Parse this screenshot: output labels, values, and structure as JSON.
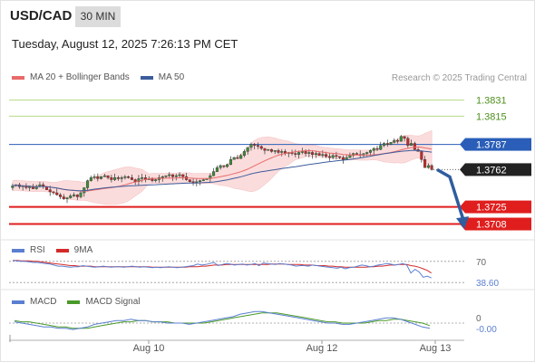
{
  "header": {
    "pair": "USD/CAD",
    "timeframe": "30 MIN",
    "datetime": "Tuesday, August 12, 2025 7:26:13 PM CET",
    "credit": "Research © 2025 Trading Central"
  },
  "colors": {
    "ma20": "#e86a6a",
    "bollinger_fill": "#fbdcdc",
    "ma50": "#3d5c9c",
    "target_line": "#b5d98a",
    "pivot_line": "#2a5eb8",
    "support_line": "#e01e1e",
    "candle_up": "#3a8f3a",
    "candle_down": "#c62828",
    "arrow": "#2f5d9e",
    "rsi": "#5b7fd0",
    "rsi_9ma": "#d42a2a",
    "macd": "#5b7fd0",
    "macd_signal": "#4a9a2a"
  },
  "chart_data": [
    {
      "type": "candlestick",
      "legend": [
        "MA 20 + Bollinger Bands",
        "MA 50"
      ],
      "x_ticks": [
        "Aug 10",
        "Aug 12",
        "Aug 13"
      ],
      "ylim": [
        1.3695,
        1.3845
      ],
      "levels": [
        {
          "label": "1.3831",
          "value": 1.3831,
          "kind": "target"
        },
        {
          "label": "1.3815",
          "value": 1.3815,
          "kind": "target"
        },
        {
          "label": "1.3787",
          "value": 1.3787,
          "kind": "pivot"
        },
        {
          "label": "1.3762",
          "value": 1.3762,
          "kind": "last"
        },
        {
          "label": "1.3725",
          "value": 1.3725,
          "kind": "support"
        },
        {
          "label": "1.3708",
          "value": 1.3708,
          "kind": "support"
        }
      ],
      "close": [
        1.3746,
        1.3747,
        1.3745,
        1.3746,
        1.3744,
        1.3745,
        1.3743,
        1.3745,
        1.3747,
        1.3745,
        1.3742,
        1.374,
        1.3739,
        1.3737,
        1.3735,
        1.3733,
        1.3734,
        1.3736,
        1.3737,
        1.3735,
        1.3739,
        1.3744,
        1.3751,
        1.3754,
        1.3755,
        1.3753,
        1.3755,
        1.3756,
        1.3754,
        1.3752,
        1.3754,
        1.3753,
        1.3754,
        1.3755,
        1.3754,
        1.3752,
        1.375,
        1.3753,
        1.3754,
        1.3752,
        1.3753,
        1.3751,
        1.3752,
        1.3754,
        1.3755,
        1.3756,
        1.3757,
        1.3755,
        1.3756,
        1.3757,
        1.3755,
        1.3752,
        1.375,
        1.3749,
        1.375,
        1.3751,
        1.3752,
        1.3753,
        1.3756,
        1.376,
        1.3764,
        1.3766,
        1.3765,
        1.3767,
        1.3772,
        1.3774,
        1.3773,
        1.3776,
        1.378,
        1.3784,
        1.3787,
        1.3786,
        1.3785,
        1.3783,
        1.3781,
        1.3782,
        1.378,
        1.3781,
        1.3779,
        1.378,
        1.3778,
        1.3779,
        1.3778,
        1.3777,
        1.3779,
        1.378,
        1.3778,
        1.3779,
        1.3777,
        1.3778,
        1.3776,
        1.3777,
        1.3775,
        1.3774,
        1.3776,
        1.3775,
        1.3774,
        1.3772,
        1.3774,
        1.3776,
        1.3778,
        1.3777,
        1.3776,
        1.3778,
        1.3779,
        1.3781,
        1.3783,
        1.3782,
        1.3786,
        1.3788,
        1.3787,
        1.3789,
        1.3791,
        1.379,
        1.3795,
        1.3793,
        1.3786,
        1.3788,
        1.3782,
        1.378,
        1.3772,
        1.3764,
        1.3766,
        1.3762
      ],
      "volatility": 0.0007
    },
    {
      "type": "line",
      "legend": [
        "RSI",
        "9MA"
      ],
      "y_ticks": [
        "70"
      ],
      "last_value_label": "38.60",
      "ylim": [
        20,
        80
      ],
      "series": [
        {
          "name": "RSI",
          "values": [
            72,
            71,
            70,
            70,
            69,
            68,
            68,
            67,
            66,
            65,
            63,
            61,
            61,
            60,
            59,
            60,
            60,
            62,
            61,
            60,
            59,
            60,
            61,
            60,
            59,
            60,
            60,
            59,
            60,
            61,
            60,
            59,
            60,
            59,
            58,
            59,
            58,
            59,
            60,
            59,
            58,
            59,
            60,
            61,
            62,
            65,
            63,
            64,
            66,
            68,
            62,
            64,
            66,
            65,
            63,
            64,
            65,
            63,
            64,
            66,
            62,
            67,
            66,
            65,
            64,
            66,
            65,
            64,
            63,
            61,
            62,
            62,
            61,
            63,
            62,
            61,
            60,
            59,
            58,
            57,
            59,
            56,
            58,
            59,
            61,
            63,
            62,
            60,
            61,
            63,
            64,
            66,
            65,
            63,
            64,
            66,
            63,
            48,
            55,
            50,
            40,
            42,
            38.6
          ]
        },
        {
          "name": "9MA",
          "values": [
            72,
            72,
            71,
            71,
            71,
            70,
            70,
            69,
            68,
            67,
            66,
            65,
            64,
            63,
            62,
            62,
            61,
            61,
            61,
            61,
            60,
            60,
            60,
            60,
            60,
            60,
            60,
            60,
            60,
            60,
            60,
            60,
            60,
            60,
            59,
            59,
            59,
            59,
            59,
            59,
            59,
            59,
            59,
            60,
            60,
            60,
            61,
            61,
            62,
            63,
            63,
            63,
            64,
            64,
            64,
            64,
            64,
            64,
            64,
            64,
            64,
            64,
            64,
            65,
            65,
            65,
            65,
            64,
            64,
            64,
            64,
            63,
            63,
            63,
            62,
            62,
            62,
            61,
            61,
            60,
            60,
            59,
            59,
            59,
            59,
            59,
            59,
            60,
            60,
            61,
            61,
            62,
            63,
            63,
            64,
            64,
            64,
            62,
            61,
            59,
            56,
            53,
            48
          ]
        }
      ]
    },
    {
      "type": "line",
      "legend": [
        "MACD",
        "MACD Signal"
      ],
      "y_ticks": [
        "0"
      ],
      "last_value_label": "-0.00",
      "ylim": [
        -0.0012,
        0.0012
      ],
      "series": [
        {
          "name": "MACD",
          "values": [
            0.0001,
            0.0,
            -0.0001,
            -0.0002,
            -0.0003,
            -0.0003,
            -0.0004,
            -0.0004,
            -0.0005,
            -0.0004,
            -0.0003,
            -0.0001,
            0.0,
            0.0001,
            0.0002,
            0.0002,
            0.0003,
            0.0002,
            0.0002,
            0.0001,
            0.0001,
            0.0,
            0.0,
            0.0,
            -0.0001,
            0.0,
            0.0001,
            0.0002,
            0.0003,
            0.0004,
            0.0005,
            0.0007,
            0.0008,
            0.0009,
            0.0009,
            0.0008,
            0.0007,
            0.0006,
            0.0005,
            0.0004,
            0.0003,
            0.0002,
            0.0001,
            0.0,
            0.0,
            -0.0001,
            -0.0001,
            0.0,
            0.0001,
            0.0002,
            0.0003,
            0.0004,
            0.0004,
            0.0003,
            0.0001,
            -0.0001,
            -0.0003,
            -0.0004
          ]
        },
        {
          "name": "MACD Signal",
          "values": [
            0.0002,
            0.0001,
            0.0001,
            0.0,
            -0.0001,
            -0.0002,
            -0.0003,
            -0.0003,
            -0.0004,
            -0.0004,
            -0.0004,
            -0.0003,
            -0.0002,
            -0.0001,
            0.0,
            0.0001,
            0.0001,
            0.0002,
            0.0002,
            0.0001,
            0.0001,
            0.0001,
            0.0,
            0.0,
            0.0,
            0.0,
            0.0,
            0.0001,
            0.0002,
            0.0003,
            0.0004,
            0.0005,
            0.0006,
            0.0007,
            0.0008,
            0.0008,
            0.0008,
            0.0007,
            0.0006,
            0.0005,
            0.0004,
            0.0003,
            0.0002,
            0.0001,
            0.0001,
            0.0,
            0.0,
            0.0,
            0.0,
            0.0001,
            0.0002,
            0.0002,
            0.0003,
            0.0003,
            0.0002,
            0.0001,
            0.0,
            -0.0002
          ]
        }
      ]
    }
  ]
}
